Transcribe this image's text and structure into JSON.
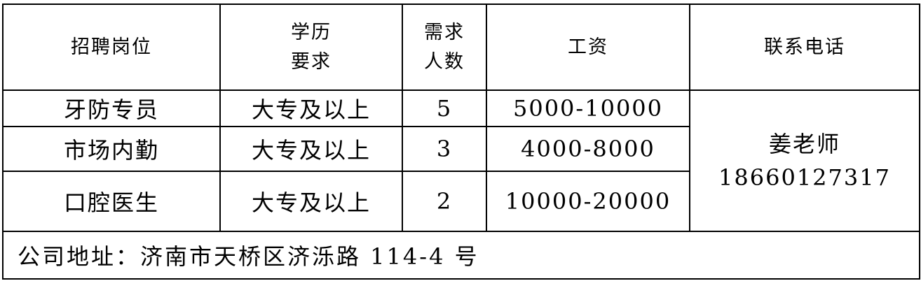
{
  "headers": {
    "position": "招聘岗位",
    "education_line1": "学历",
    "education_line2": "要求",
    "count_line1": "需求",
    "count_line2": "人数",
    "salary": "工资",
    "phone": "联系电话"
  },
  "rows": [
    {
      "position": "牙防专员",
      "education": "大专及以上",
      "count": "5",
      "salary": "5000-10000"
    },
    {
      "position": "市场内勤",
      "education": "大专及以上",
      "count": "3",
      "salary": "4000-8000"
    },
    {
      "position": "口腔医生",
      "education": "大专及以上",
      "count": "2",
      "salary": "10000-20000"
    }
  ],
  "contact": {
    "name": "姜老师",
    "phone": "18660127317"
  },
  "address": "公司地址：济南市天桥区济泺路 114-4 号"
}
